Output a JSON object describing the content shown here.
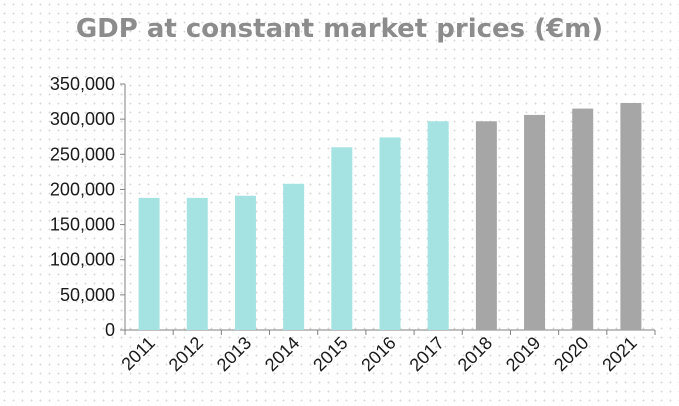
{
  "chart_data": {
    "type": "bar",
    "title": "GDP at constant market prices (€m)",
    "xlabel": "",
    "ylabel": "",
    "categories": [
      "2011",
      "2012",
      "2013",
      "2014",
      "2015",
      "2016",
      "2017",
      "2018",
      "2019",
      "2020",
      "2021"
    ],
    "values": [
      188000,
      188000,
      191000,
      208000,
      260000,
      274000,
      297000,
      297000,
      306000,
      315000,
      323000
    ],
    "bar_colors": [
      "#a5e3e3",
      "#a5e3e3",
      "#a5e3e3",
      "#a5e3e3",
      "#a5e3e3",
      "#a5e3e3",
      "#a5e3e3",
      "#a6a6a6",
      "#a6a6a6",
      "#a6a6a6",
      "#a6a6a6"
    ],
    "ylim": [
      0,
      350000
    ],
    "yticks": [
      0,
      50000,
      100000,
      150000,
      200000,
      250000,
      300000,
      350000
    ],
    "ytick_labels": [
      "0",
      "50,000",
      "100,000",
      "150,000",
      "200,000",
      "250,000",
      "300,000",
      "350,000"
    ],
    "grid": false,
    "legend": "none"
  }
}
